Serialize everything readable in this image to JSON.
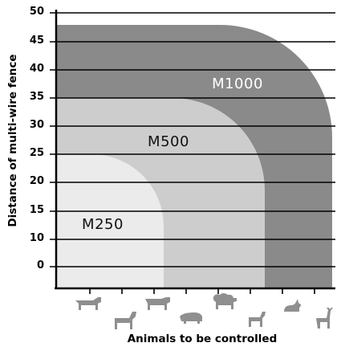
{
  "chart_data": {
    "type": "area",
    "xlabel": "Animals to be controlled",
    "ylabel": "Distance of multi-wire fence",
    "y_ticks": [
      "50",
      "45",
      "40",
      "35",
      "30",
      "25",
      "20",
      "15",
      "10",
      "0"
    ],
    "grid": "horizontal lines at each tick",
    "series": [
      {
        "name": "M1000",
        "max_distance": 48,
        "covered_animal_categories": 8,
        "color": "#8a8a8a",
        "label_color": "#ffffff"
      },
      {
        "name": "M500",
        "max_distance": 35,
        "covered_animal_categories": 6,
        "color": "#cdcdcd",
        "label_color": "#111111"
      },
      {
        "name": "M250",
        "max_distance": 25,
        "covered_animal_categories": 3,
        "color": "#ebebeb",
        "label_color": "#111111"
      }
    ],
    "x_categories_icons": [
      "cow-icon",
      "horse-icon",
      "bull-icon",
      "pig-icon",
      "sheep-icon",
      "goat-icon",
      "rabbit-icon",
      "deer-icon"
    ]
  }
}
